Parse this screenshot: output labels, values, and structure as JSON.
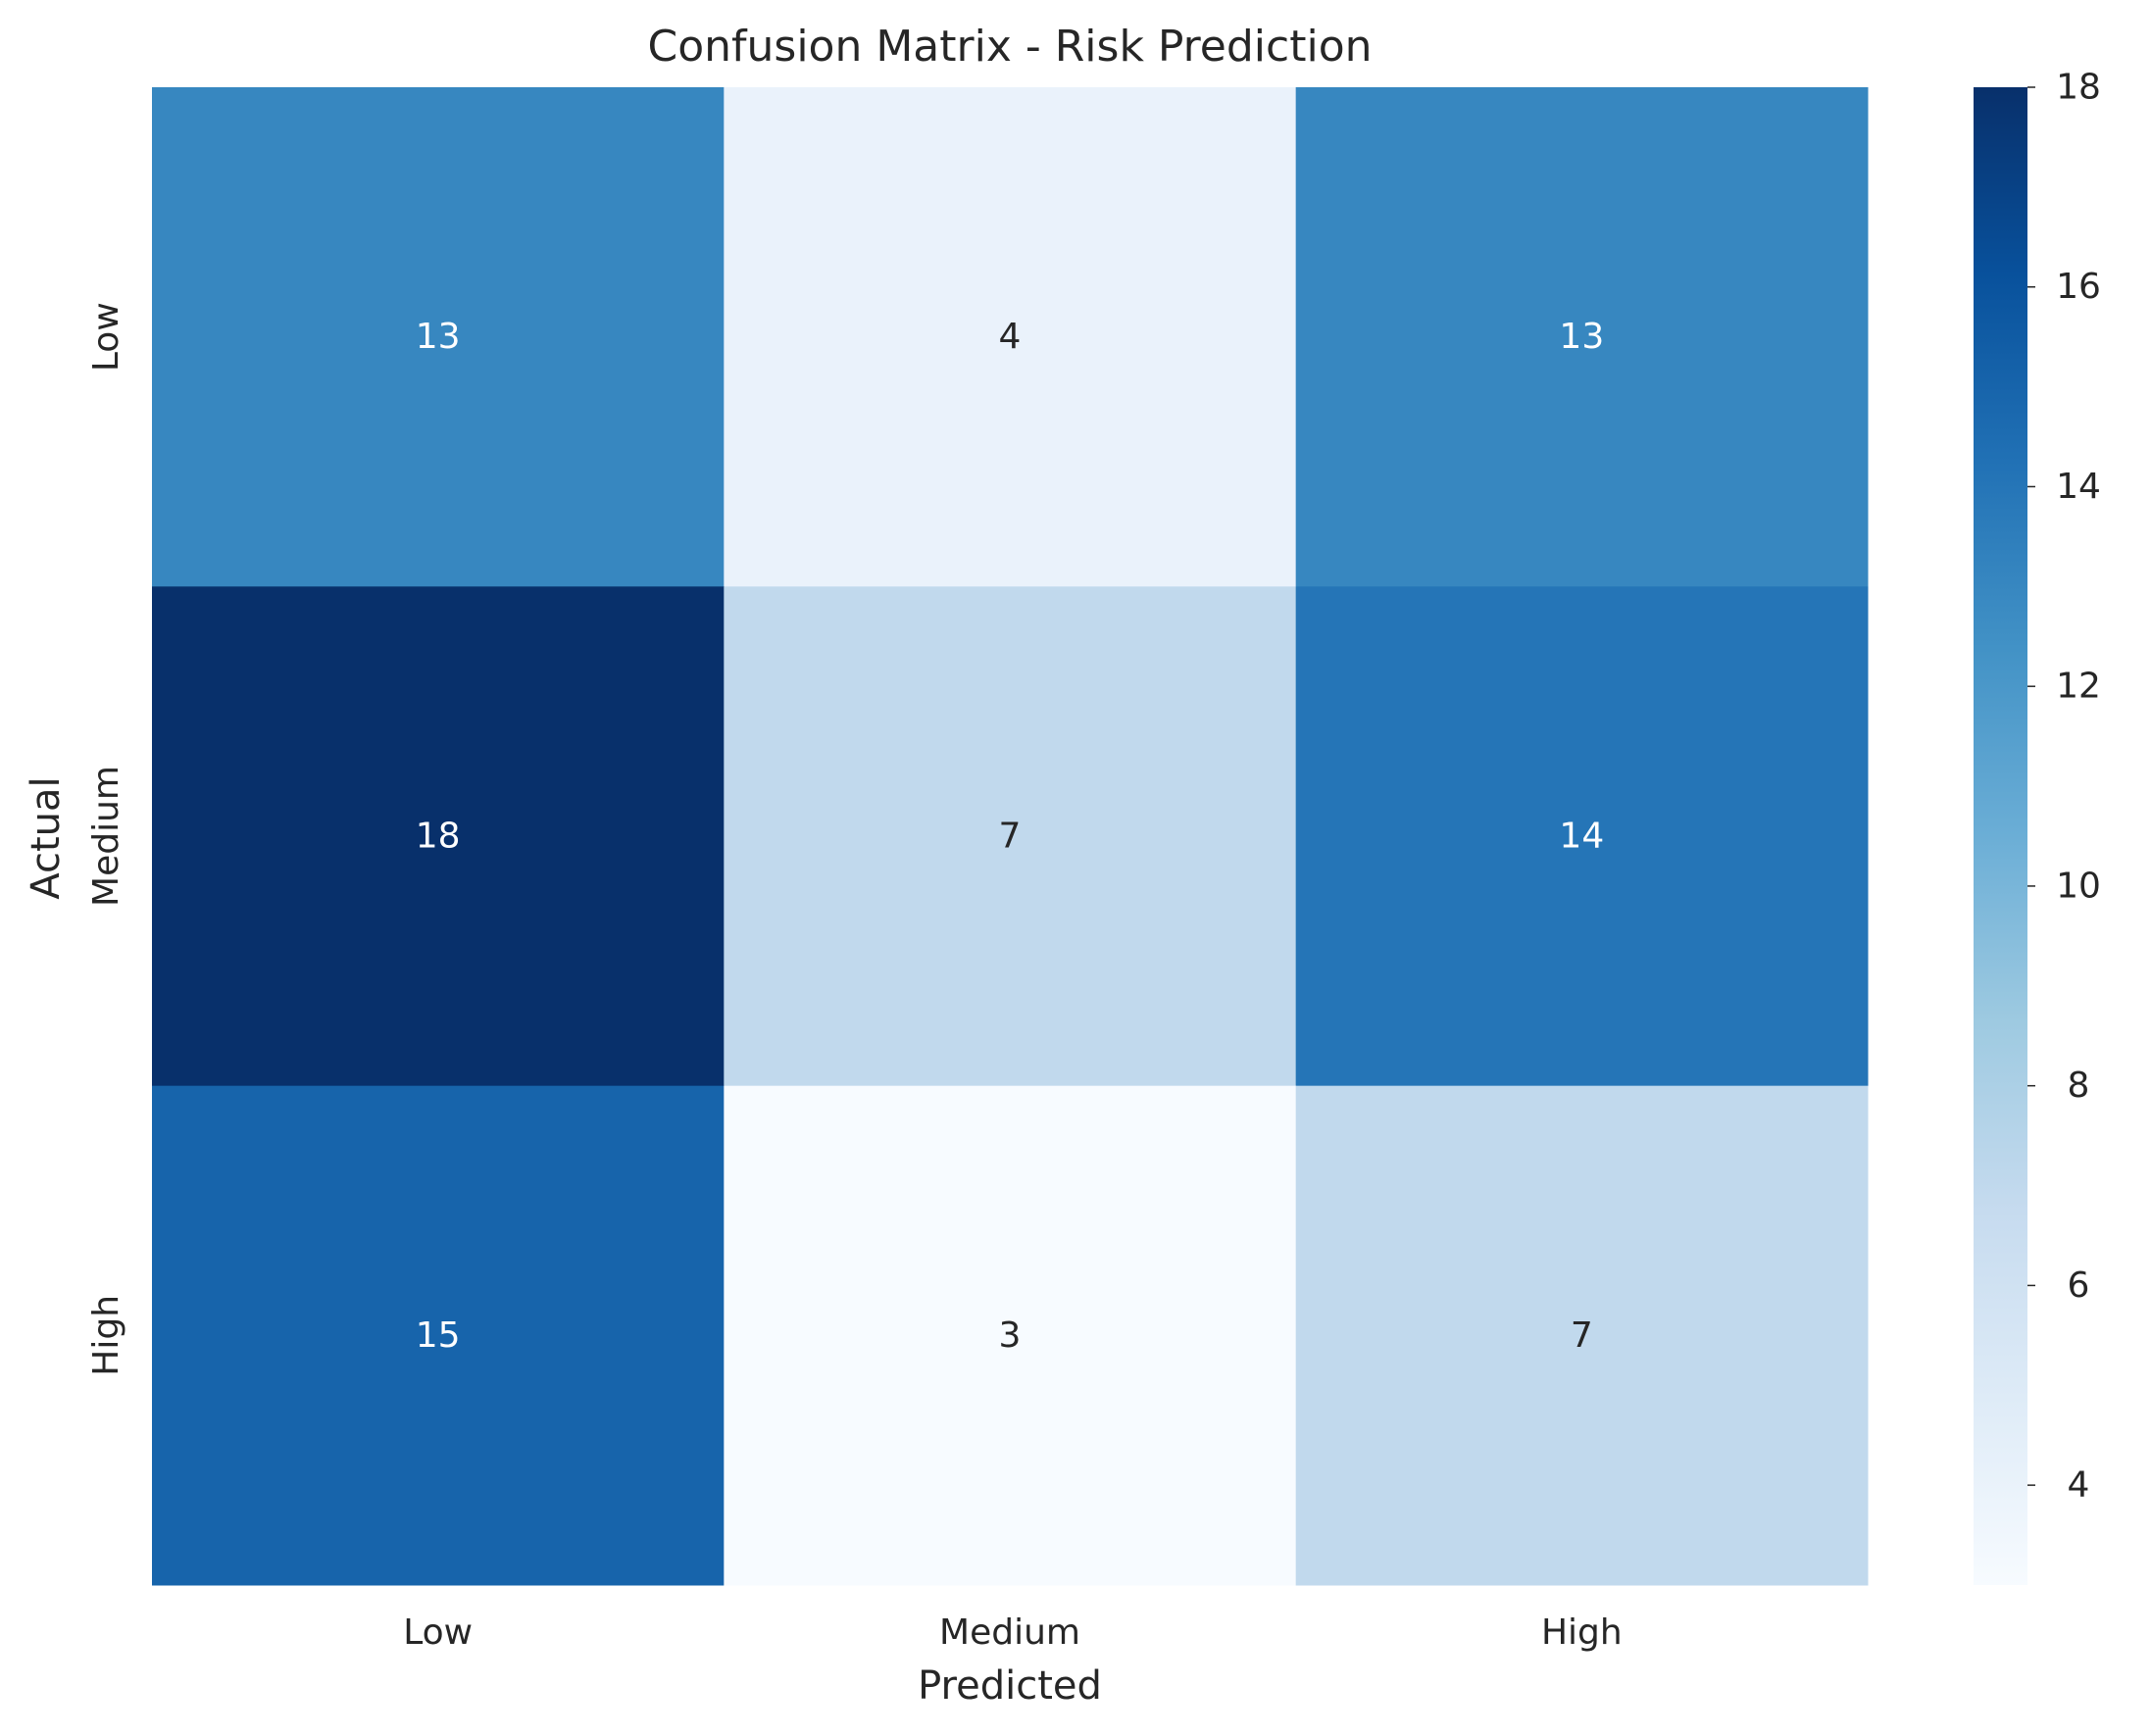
{
  "chart_data": {
    "type": "heatmap",
    "title": "Confusion Matrix - Risk Prediction",
    "xlabel": "Predicted",
    "ylabel": "Actual",
    "x_categories": [
      "Low",
      "Medium",
      "High"
    ],
    "y_categories": [
      "Low",
      "Medium",
      "High"
    ],
    "values": [
      [
        13,
        4,
        13
      ],
      [
        18,
        7,
        14
      ],
      [
        15,
        3,
        7
      ]
    ],
    "colormap": "Blues",
    "color_range": [
      3,
      18
    ],
    "colorbar_ticks": [
      4,
      6,
      8,
      10,
      12,
      14,
      16,
      18
    ],
    "annotation_colors": {
      "dark_cell": "#ffffff",
      "light_cell": "#262626"
    },
    "grid": false
  }
}
